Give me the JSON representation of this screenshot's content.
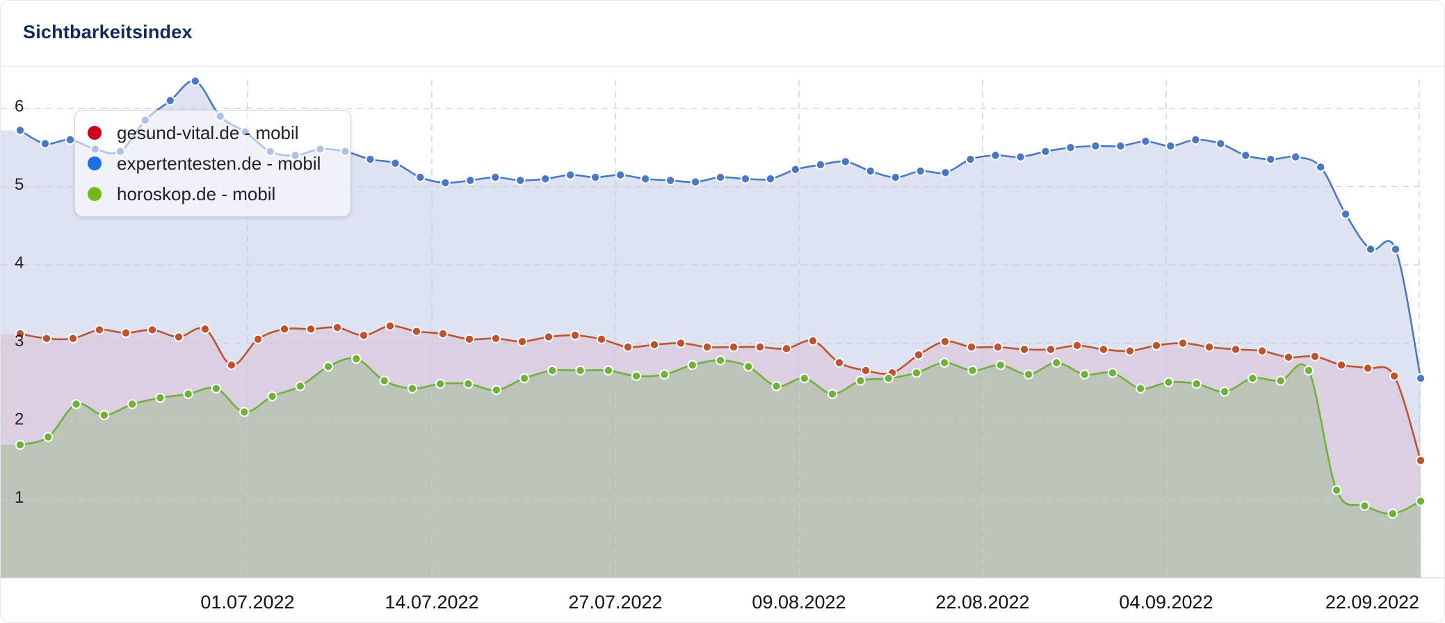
{
  "card": {
    "title": "Sichtbarkeitsindex"
  },
  "legend": {
    "items": [
      {
        "label": "gesund-vital.de - mobil",
        "color": "#d0021b"
      },
      {
        "label": "expertentesten.de - mobil",
        "color": "#1e6fe0"
      },
      {
        "label": "horoskop.de - mobil",
        "color": "#74b816"
      }
    ]
  },
  "chart_data": {
    "type": "area",
    "ylim": [
      0,
      6.5
    ],
    "yticks": [
      1,
      2,
      3,
      4,
      5,
      6
    ],
    "x_ticks": [
      "01.07.2022",
      "14.07.2022",
      "27.07.2022",
      "09.08.2022",
      "22.08.2022",
      "04.09.2022",
      "22.09.2022"
    ],
    "grid": true,
    "legend_position": "top-left",
    "series": [
      {
        "name": "expertentesten.de - mobil",
        "color": "#4a78c8",
        "fill": "#dde3f2",
        "values": [
          5.72,
          5.55,
          5.6,
          5.48,
          5.45,
          5.85,
          6.1,
          6.35,
          5.9,
          5.7,
          5.45,
          5.4,
          5.48,
          5.45,
          5.35,
          5.3,
          5.12,
          5.05,
          5.08,
          5.12,
          5.08,
          5.1,
          5.15,
          5.12,
          5.15,
          5.1,
          5.08,
          5.06,
          5.12,
          5.1,
          5.1,
          5.22,
          5.28,
          5.32,
          5.2,
          5.12,
          5.2,
          5.18,
          5.35,
          5.4,
          5.38,
          5.45,
          5.5,
          5.52,
          5.52,
          5.58,
          5.52,
          5.6,
          5.55,
          5.4,
          5.35,
          5.38,
          5.25,
          4.65,
          4.2,
          4.2,
          2.55
        ]
      },
      {
        "name": "gesund-vital.de - mobil",
        "color": "#c0522e",
        "fill": "#dccfe1",
        "values": [
          3.12,
          3.06,
          3.06,
          3.17,
          3.13,
          3.17,
          3.08,
          3.18,
          2.72,
          3.05,
          3.18,
          3.18,
          3.2,
          3.1,
          3.22,
          3.15,
          3.12,
          3.05,
          3.06,
          3.02,
          3.08,
          3.1,
          3.05,
          2.95,
          2.98,
          3.0,
          2.95,
          2.95,
          2.95,
          2.93,
          3.03,
          2.75,
          2.65,
          2.62,
          2.85,
          3.02,
          2.95,
          2.95,
          2.92,
          2.92,
          2.97,
          2.92,
          2.9,
          2.97,
          3.0,
          2.95,
          2.92,
          2.9,
          2.82,
          2.83,
          2.72,
          2.68,
          2.58,
          1.5
        ]
      },
      {
        "name": "horoskop.de - mobil",
        "color": "#6fb23a",
        "fill": "#bcc4b7",
        "values": [
          1.7,
          1.8,
          2.22,
          2.08,
          2.22,
          2.3,
          2.35,
          2.42,
          2.12,
          2.32,
          2.45,
          2.7,
          2.8,
          2.52,
          2.42,
          2.48,
          2.48,
          2.4,
          2.55,
          2.65,
          2.65,
          2.65,
          2.58,
          2.6,
          2.72,
          2.78,
          2.7,
          2.45,
          2.55,
          2.35,
          2.52,
          2.55,
          2.62,
          2.75,
          2.65,
          2.72,
          2.6,
          2.75,
          2.6,
          2.62,
          2.42,
          2.5,
          2.48,
          2.38,
          2.55,
          2.52,
          2.65,
          1.12,
          0.92,
          0.82,
          0.98
        ]
      }
    ]
  }
}
